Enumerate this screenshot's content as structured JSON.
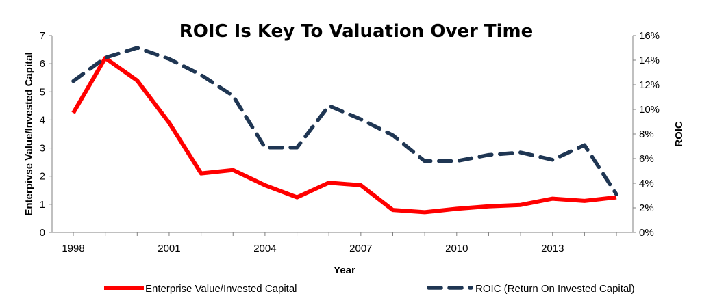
{
  "chart_data": {
    "type": "line",
    "title": "ROIC Is Key To Valuation Over Time",
    "xlabel": "Year",
    "ylabel_left": "Enterpivse Value/Invested Capital",
    "ylabel_right": "ROIC",
    "x": [
      1998,
      1999,
      2000,
      2001,
      2002,
      2003,
      2004,
      2005,
      2006,
      2007,
      2008,
      2009,
      2010,
      2011,
      2012,
      2013,
      2014,
      2015
    ],
    "x_tick_labels": [
      "1998",
      "2001",
      "2004",
      "2007",
      "2010",
      "2013"
    ],
    "ylim_left": [
      0,
      7
    ],
    "y_ticks_left": [
      "0",
      "1",
      "2",
      "3",
      "4",
      "5",
      "6",
      "7"
    ],
    "ylim_right": [
      0,
      16
    ],
    "y_ticks_right": [
      "0%",
      "2%",
      "4%",
      "6%",
      "8%",
      "10%",
      "12%",
      "14%",
      "16%"
    ],
    "grid": false,
    "legend_position": "bottom",
    "series": [
      {
        "name": "Enterprise Value/Invested Capital",
        "axis": "left",
        "color": "#ff0000",
        "style": "solid",
        "values": [
          4.25,
          6.2,
          5.4,
          3.9,
          2.1,
          2.22,
          1.68,
          1.25,
          1.77,
          1.68,
          0.8,
          0.72,
          0.84,
          0.93,
          0.98,
          1.2,
          1.12,
          1.25
        ]
      },
      {
        "name": "ROIC (Return On Invested Capital)",
        "axis": "right",
        "color": "#1f3653",
        "style": "dashed",
        "values": [
          12.3,
          14.2,
          15.0,
          14.1,
          12.8,
          11.1,
          6.9,
          6.9,
          10.3,
          9.2,
          7.9,
          5.8,
          5.8,
          6.3,
          6.5,
          5.9,
          7.1,
          3.1
        ]
      }
    ]
  }
}
